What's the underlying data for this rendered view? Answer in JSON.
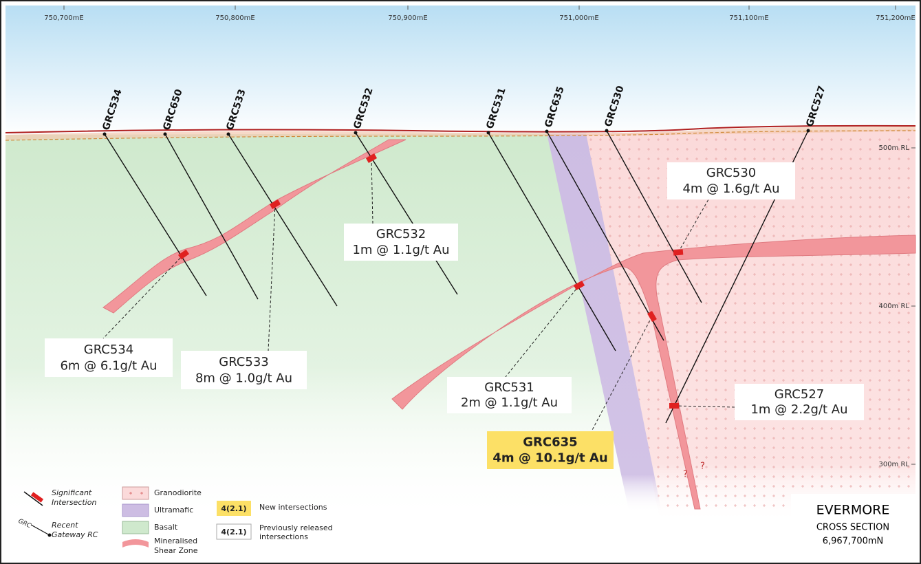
{
  "axes": {
    "eastings": [
      "750,700mE",
      "750,800mE",
      "750,900mE",
      "751,000mE",
      "751,100mE",
      "751,200mE"
    ],
    "rl": [
      "500m RL",
      "400m RL",
      "300m RL"
    ]
  },
  "holes": [
    "GRC534",
    "GRC650",
    "GRC533",
    "GRC532",
    "GRC531",
    "GRC635",
    "GRC530",
    "GRC527"
  ],
  "intersections": [
    {
      "hole": "GRC532",
      "result": "1m @ 1.1g/t Au"
    },
    {
      "hole": "GRC530",
      "result": "4m @ 1.6g/t Au"
    },
    {
      "hole": "GRC534",
      "result": "6m @ 6.1g/t Au"
    },
    {
      "hole": "GRC533",
      "result": "8m @ 1.0g/t Au"
    },
    {
      "hole": "GRC531",
      "result": "2m @ 1.1g/t Au"
    },
    {
      "hole": "GRC635",
      "result": "4m @ 10.1g/t Au"
    },
    {
      "hole": "GRC527",
      "result": "1m @ 2.2g/t Au"
    }
  ],
  "unknowns": [
    "?",
    "?"
  ],
  "legend": {
    "significant": [
      "Significant",
      "Intersection"
    ],
    "grc_symbol": "GRC",
    "recent": [
      "Recent",
      "Gateway RC"
    ],
    "granodiorite": "Granodiorite",
    "ultramafic": "Ultramafic",
    "basalt": "Basalt",
    "shear": [
      "Mineralised",
      "Shear Zone"
    ],
    "new_sample": "4(2.1)",
    "new": "New intersections",
    "prev_sample": "4(2.1)",
    "prev": [
      "Previously released",
      "intersections"
    ]
  },
  "title_block": {
    "name": "EVERMORE",
    "subtitle": "CROSS SECTION",
    "northing": "6,967,700mN"
  }
}
